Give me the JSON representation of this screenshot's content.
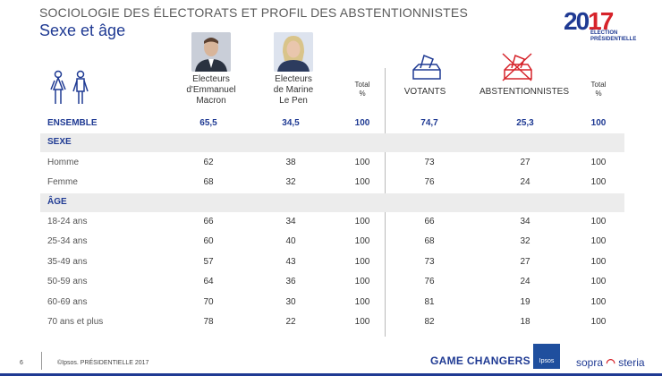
{
  "header": {
    "title": "SOCIOLOGIE DES ÉLECTORATS ET PROFIL DES ABSTENTIONNISTES",
    "subtitle": "Sexe et âge"
  },
  "logo": {
    "num_a": "20",
    "num_b": "17",
    "line1": "ÉLECTION",
    "line2": "PRÉSIDENTIELLE"
  },
  "columns": {
    "macron": "Electeurs d'Emmanuel Macron",
    "macron_l1": "Electeurs",
    "macron_l2": "d'Emmanuel",
    "macron_l3": "Macron",
    "lepen_l1": "Electeurs",
    "lepen_l2": "de Marine",
    "lepen_l3": "Le Pen",
    "total_a_l1": "Total",
    "total_a_l2": "%",
    "votants": "VOTANTS",
    "abst": "ABSTENTIONNISTES",
    "total_b_l1": "Total",
    "total_b_l2": "%"
  },
  "ensemble": {
    "label": "ENSEMBLE",
    "macron": "65,5",
    "lepen": "34,5",
    "total_a": "100",
    "votants": "74,7",
    "abst": "25,3",
    "total_b": "100"
  },
  "sections": {
    "sexe": "SEXE",
    "age": "ÂGE"
  },
  "rows": [
    {
      "label": "Homme",
      "macron": "62",
      "lepen": "38",
      "total_a": "100",
      "votants": "73",
      "abst": "27",
      "total_b": "100"
    },
    {
      "label": "Femme",
      "macron": "68",
      "lepen": "32",
      "total_a": "100",
      "votants": "76",
      "abst": "24",
      "total_b": "100"
    },
    {
      "label": "18-24 ans",
      "macron": "66",
      "lepen": "34",
      "total_a": "100",
      "votants": "66",
      "abst": "34",
      "total_b": "100"
    },
    {
      "label": "25-34 ans",
      "macron": "60",
      "lepen": "40",
      "total_a": "100",
      "votants": "68",
      "abst": "32",
      "total_b": "100"
    },
    {
      "label": "35-49 ans",
      "macron": "57",
      "lepen": "43",
      "total_a": "100",
      "votants": "73",
      "abst": "27",
      "total_b": "100"
    },
    {
      "label": "50-59 ans",
      "macron": "64",
      "lepen": "36",
      "total_a": "100",
      "votants": "76",
      "abst": "24",
      "total_b": "100"
    },
    {
      "label": "60-69 ans",
      "macron": "70",
      "lepen": "30",
      "total_a": "100",
      "votants": "81",
      "abst": "19",
      "total_b": "100"
    },
    {
      "label": "70 ans et plus",
      "macron": "78",
      "lepen": "22",
      "total_a": "100",
      "votants": "82",
      "abst": "18",
      "total_b": "100"
    }
  ],
  "footer": {
    "page": "6",
    "copyright": "©Ipsos.  PRÉSIDENTIELLE 2017",
    "game": "GAME CHANGERS",
    "ipsos": "Ipsos",
    "sopra_a": "sopra",
    "sopra_b": "steria"
  },
  "colors": {
    "brand": "#1f3a93",
    "accent": "#d6232a",
    "section_bg": "#ececec"
  }
}
